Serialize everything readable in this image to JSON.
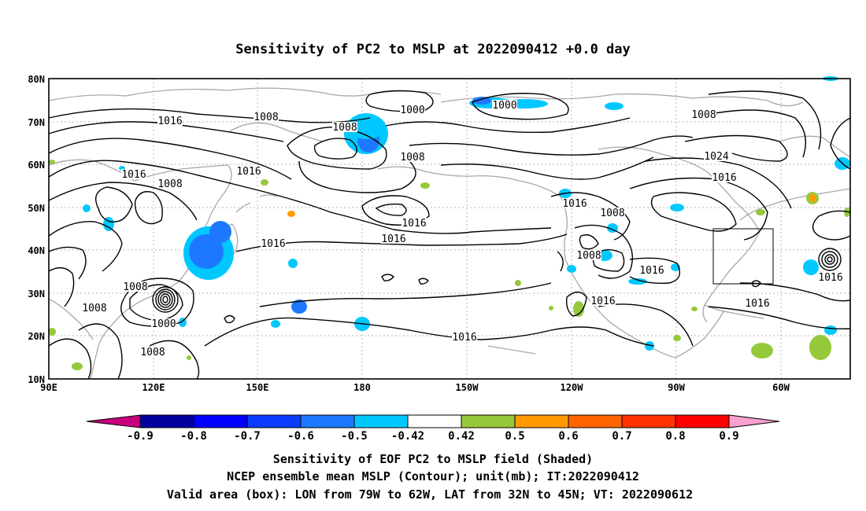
{
  "title": "Sensitivity of PC2 to MSLP at 2022090412 +0.0 day",
  "lat_labels": [
    "10N",
    "20N",
    "30N",
    "40N",
    "50N",
    "60N",
    "70N",
    "80N"
  ],
  "lon_labels": [
    "90E",
    "120E",
    "150E",
    "180",
    "150W",
    "120W",
    "90W",
    "60W"
  ],
  "contour_labels": [
    "1016",
    "1008",
    "1008",
    "1000",
    "1000",
    "1008",
    "1016",
    "1016",
    "1008",
    "1008",
    "1024",
    "1016",
    "1016",
    "1008",
    "1016",
    "1016",
    "1016",
    "1008",
    "1016",
    "1008",
    "1016",
    "1016",
    "1008",
    "1000",
    "1008",
    "1016",
    "1016",
    "1008"
  ],
  "colorbar": {
    "labels": [
      "-0.9",
      "-0.8",
      "-0.7",
      "-0.6",
      "-0.5",
      "-0.42",
      "0.42",
      "0.5",
      "0.6",
      "0.7",
      "0.8",
      "0.9"
    ],
    "colors": [
      "#c8007d",
      "#00009f",
      "#0000ff",
      "#0a3dff",
      "#1e78ff",
      "#00c8ff",
      "#ffffff",
      "#96c83c",
      "#ff9b00",
      "#ff6400",
      "#ff3200",
      "#ff0000",
      "#f9a0d0"
    ]
  },
  "footer": {
    "line1": "Sensitivity of EOF PC2 to MSLP field (Shaded)",
    "line2": "NCEP ensemble mean MSLP (Contour); unit(mb); IT:2022090412",
    "line3": "Valid area (box): LON from 79W to 62W, LAT from 32N to 45N; VT: 2022090612"
  },
  "colors": {
    "contour": "#000000",
    "coast": "#a8a8a8",
    "grid": "#b4b4b4",
    "pos": "#96c83c",
    "neg": "#00c8ff",
    "neg_strong": "#1e78ff"
  }
}
